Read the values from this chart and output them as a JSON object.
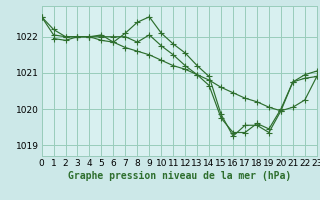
{
  "background_color": "#cce8e8",
  "plot_bg_color": "#d8f0f0",
  "grid_color": "#99ccbb",
  "line_color": "#2d6e2d",
  "marker_color": "#2d6e2d",
  "title": "Graphe pression niveau de la mer (hPa)",
  "tick_fontsize": 6.5,
  "title_fontsize": 7,
  "ylim": [
    1018.7,
    1022.85
  ],
  "xlim": [
    0,
    23
  ],
  "yticks": [
    1019,
    1020,
    1021,
    1022
  ],
  "line1_x": [
    0,
    1,
    2,
    3,
    4,
    5,
    6,
    7,
    8,
    9,
    10,
    11,
    12,
    13,
    14,
    15,
    16,
    17,
    18,
    19,
    20,
    21,
    22,
    23
  ],
  "line1_y": [
    1022.55,
    1022.2,
    1022.0,
    1022.0,
    1022.0,
    1021.9,
    1021.85,
    1021.7,
    1021.6,
    1021.5,
    1021.35,
    1021.2,
    1021.1,
    1020.95,
    1020.8,
    1020.6,
    1020.45,
    1020.3,
    1020.2,
    1020.05,
    1019.95,
    1020.05,
    1020.25,
    1020.9
  ],
  "line2_x": [
    0,
    1,
    2,
    3,
    4,
    5,
    6,
    7,
    8,
    9,
    10,
    11,
    12,
    13,
    14,
    15,
    16,
    17,
    18,
    19,
    20,
    21,
    22,
    23
  ],
  "line2_y": [
    1022.55,
    1022.05,
    1022.0,
    1022.0,
    1022.0,
    1022.0,
    1022.0,
    1022.0,
    1021.85,
    1022.05,
    1021.75,
    1021.5,
    1021.2,
    1020.95,
    1020.65,
    1019.75,
    1019.35,
    1019.35,
    1019.6,
    1019.45,
    1020.0,
    1020.75,
    1020.85,
    1020.9
  ],
  "line3_x": [
    1,
    2,
    3,
    4,
    5,
    6,
    7,
    8,
    9,
    10,
    11,
    12,
    13,
    14,
    15,
    16,
    17,
    18,
    19,
    20,
    21,
    22,
    23
  ],
  "line3_y": [
    1021.95,
    1021.9,
    1022.0,
    1022.0,
    1022.05,
    1021.85,
    1022.1,
    1022.4,
    1022.55,
    1022.1,
    1021.8,
    1021.55,
    1021.2,
    1020.9,
    1019.85,
    1019.25,
    1019.55,
    1019.55,
    1019.35,
    1019.95,
    1020.75,
    1020.95,
    1021.05
  ]
}
